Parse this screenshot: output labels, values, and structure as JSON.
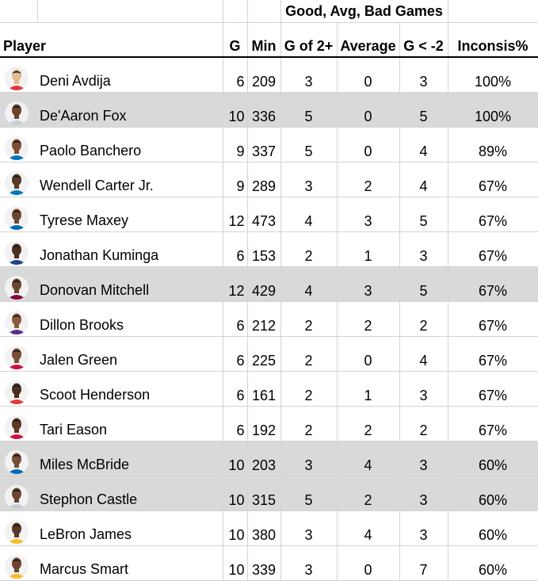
{
  "header": {
    "group_label": "Good, Avg, Bad Games",
    "player": "Player",
    "g": "G",
    "min": "Min",
    "good": "G of 2+",
    "avg": "Average",
    "bad": "G < -2",
    "incons": "Inconsis%"
  },
  "rows": [
    {
      "name": "Deni Avdija",
      "g": "6",
      "min": "209",
      "good": "3",
      "avg": "0",
      "bad": "3",
      "pct": "100%",
      "shaded": false,
      "skin": "#e2b98f",
      "jersey": "#e03a3e"
    },
    {
      "name": "De'Aaron Fox",
      "g": "10",
      "min": "336",
      "good": "5",
      "avg": "0",
      "bad": "5",
      "pct": "100%",
      "shaded": true,
      "skin": "#6b4530",
      "jersey": "#c4ced4"
    },
    {
      "name": "Paolo Banchero",
      "g": "9",
      "min": "337",
      "good": "5",
      "avg": "0",
      "bad": "4",
      "pct": "89%",
      "shaded": false,
      "skin": "#7a4e34",
      "jersey": "#0077c0"
    },
    {
      "name": "Wendell Carter Jr.",
      "g": "9",
      "min": "289",
      "good": "3",
      "avg": "2",
      "bad": "4",
      "pct": "67%",
      "shaded": false,
      "skin": "#5a3826",
      "jersey": "#0077c0"
    },
    {
      "name": "Tyrese Maxey",
      "g": "12",
      "min": "473",
      "good": "4",
      "avg": "3",
      "bad": "5",
      "pct": "67%",
      "shaded": false,
      "skin": "#6f4630",
      "jersey": "#006bb6"
    },
    {
      "name": "Jonathan Kuminga",
      "g": "6",
      "min": "153",
      "good": "2",
      "avg": "1",
      "bad": "3",
      "pct": "67%",
      "shaded": false,
      "skin": "#4a2e20",
      "jersey": "#1d428a"
    },
    {
      "name": "Donovan Mitchell",
      "g": "12",
      "min": "429",
      "good": "4",
      "avg": "3",
      "bad": "5",
      "pct": "67%",
      "shaded": true,
      "skin": "#6b4530",
      "jersey": "#860038"
    },
    {
      "name": "Dillon Brooks",
      "g": "6",
      "min": "212",
      "good": "2",
      "avg": "2",
      "bad": "2",
      "pct": "67%",
      "shaded": false,
      "skin": "#8a5a3c",
      "jersey": "#5a2d81"
    },
    {
      "name": "Jalen Green",
      "g": "6",
      "min": "225",
      "good": "2",
      "avg": "0",
      "bad": "4",
      "pct": "67%",
      "shaded": false,
      "skin": "#7a4e34",
      "jersey": "#ce1141"
    },
    {
      "name": "Scoot Henderson",
      "g": "6",
      "min": "161",
      "good": "2",
      "avg": "1",
      "bad": "3",
      "pct": "67%",
      "shaded": false,
      "skin": "#4a2e20",
      "jersey": "#e03a3e"
    },
    {
      "name": "Tari Eason",
      "g": "6",
      "min": "192",
      "good": "2",
      "avg": "2",
      "bad": "2",
      "pct": "67%",
      "shaded": false,
      "skin": "#5a3826",
      "jersey": "#ce1141"
    },
    {
      "name": "Miles McBride",
      "g": "10",
      "min": "203",
      "good": "3",
      "avg": "4",
      "bad": "3",
      "pct": "60%",
      "shaded": true,
      "skin": "#7a4e34",
      "jersey": "#006bb6"
    },
    {
      "name": "Stephon Castle",
      "g": "10",
      "min": "315",
      "good": "5",
      "avg": "2",
      "bad": "3",
      "pct": "60%",
      "shaded": true,
      "skin": "#6b4530",
      "jersey": "#c4ced4"
    },
    {
      "name": "LeBron James",
      "g": "10",
      "min": "380",
      "good": "3",
      "avg": "4",
      "bad": "3",
      "pct": "60%",
      "shaded": false,
      "skin": "#5a3826",
      "jersey": "#fdb927"
    },
    {
      "name": "Marcus Smart",
      "g": "10",
      "min": "339",
      "good": "3",
      "avg": "0",
      "bad": "7",
      "pct": "60%",
      "shaded": false,
      "skin": "#6f4630",
      "jersey": "#fdb927"
    }
  ]
}
